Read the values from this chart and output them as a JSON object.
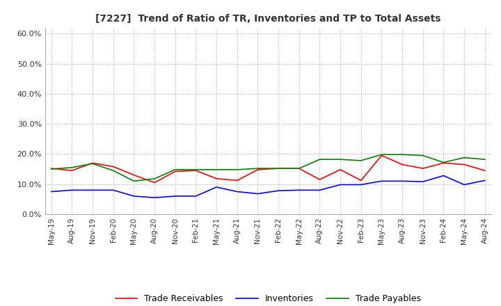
{
  "title": "[7227]  Trend of Ratio of TR, Inventories and TP to Total Assets",
  "title_fontsize": 10,
  "ylim": [
    0.0,
    0.62
  ],
  "yticks": [
    0.0,
    0.1,
    0.2,
    0.3,
    0.4,
    0.5,
    0.6
  ],
  "x_labels": [
    "May-19",
    "Aug-19",
    "Nov-19",
    "Feb-20",
    "May-20",
    "Aug-20",
    "Nov-20",
    "Feb-21",
    "May-21",
    "Aug-21",
    "Nov-21",
    "Feb-22",
    "May-22",
    "Aug-22",
    "Nov-22",
    "Feb-23",
    "May-23",
    "Aug-23",
    "Nov-23",
    "Feb-24",
    "May-24",
    "Aug-24"
  ],
  "trade_receivables": [
    0.152,
    0.145,
    0.17,
    0.158,
    0.13,
    0.105,
    0.142,
    0.145,
    0.118,
    0.112,
    0.148,
    0.152,
    0.152,
    0.115,
    0.148,
    0.112,
    0.195,
    0.165,
    0.152,
    0.17,
    0.165,
    0.145
  ],
  "inventories": [
    0.075,
    0.08,
    0.08,
    0.08,
    0.06,
    0.055,
    0.06,
    0.06,
    0.09,
    0.075,
    0.068,
    0.078,
    0.08,
    0.08,
    0.098,
    0.098,
    0.11,
    0.11,
    0.108,
    0.128,
    0.098,
    0.112
  ],
  "trade_payables": [
    0.15,
    0.155,
    0.168,
    0.145,
    0.11,
    0.118,
    0.148,
    0.148,
    0.148,
    0.148,
    0.152,
    0.152,
    0.152,
    0.182,
    0.182,
    0.178,
    0.198,
    0.198,
    0.195,
    0.172,
    0.188,
    0.182
  ],
  "tr_color": "#ff0000",
  "inv_color": "#0000ff",
  "tp_color": "#008000",
  "legend_labels": [
    "Trade Receivables",
    "Inventories",
    "Trade Payables"
  ],
  "background_color": "#ffffff",
  "grid_color": "#aaaaaa"
}
